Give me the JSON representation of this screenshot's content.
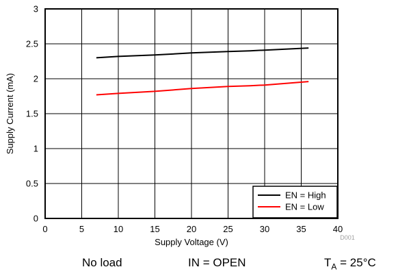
{
  "chart_data": {
    "type": "line",
    "xlabel": "Supply Voltage (V)",
    "ylabel": "Supply Current (mA)",
    "xlim": [
      0,
      40
    ],
    "ylim": [
      0,
      3
    ],
    "xticks": [
      "0",
      "5",
      "10",
      "15",
      "20",
      "25",
      "30",
      "35",
      "40"
    ],
    "yticks": [
      "0",
      "0.5",
      "1",
      "1.5",
      "2",
      "2.5",
      "3"
    ],
    "grid": true,
    "legend_position": "bottom-right",
    "series": [
      {
        "name": "EN = High",
        "color": "#000000",
        "x": [
          7,
          10,
          15,
          20,
          25,
          28,
          30,
          36
        ],
        "y": [
          2.3,
          2.32,
          2.34,
          2.37,
          2.39,
          2.4,
          2.41,
          2.44
        ]
      },
      {
        "name": "EN = Low",
        "color": "#ff0000",
        "x": [
          7,
          10,
          15,
          20,
          25,
          28,
          30,
          36
        ],
        "y": [
          1.77,
          1.79,
          1.82,
          1.86,
          1.89,
          1.9,
          1.91,
          1.96
        ]
      }
    ]
  },
  "figure_code": "D001",
  "footer": {
    "load": "No load",
    "input": "IN = OPEN",
    "temp_symbol": "T",
    "temp_sub": "A",
    "temp_value": " = 25°C"
  }
}
